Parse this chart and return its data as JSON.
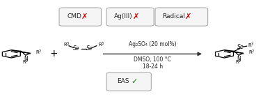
{
  "bg_color": "#ffffff",
  "box_edge_color": "#aaaaaa",
  "box_face_color": "#f5f5f5",
  "red_x_color": "#cc0000",
  "green_check_color": "#008800",
  "arrow_color": "#333333",
  "text_color": "#222222",
  "reaction_conditions_line1": "Ag₂SO₄ (20 mol%)",
  "reaction_conditions_line2": "DMSO, 100 °C",
  "reaction_conditions_line3": "18-24 h",
  "figsize": [
    3.78,
    1.42
  ],
  "dpi": 100
}
